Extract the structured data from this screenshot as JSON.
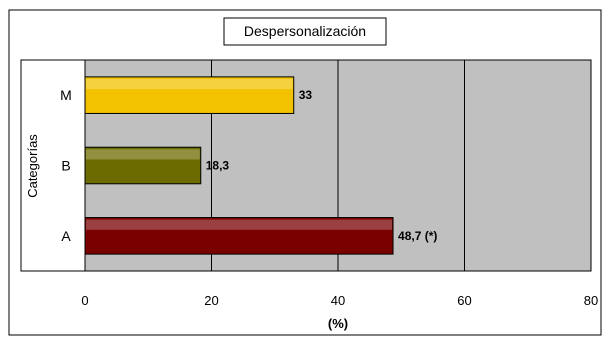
{
  "chart_data": {
    "type": "bar",
    "orientation": "horizontal",
    "title": "Despersonalización",
    "xlabel": "(%)",
    "ylabel": "Categorías",
    "categories": [
      "A",
      "B",
      "M"
    ],
    "values": [
      48.7,
      18.3,
      33
    ],
    "data_labels": [
      "48,7 (*)",
      "18,3",
      "33"
    ],
    "xlim": [
      0,
      80
    ],
    "xticks": [
      0,
      20,
      40,
      60,
      80
    ],
    "grid": true,
    "legend": "none",
    "colors": {
      "plot_background": "#c0c0c0",
      "A": "#7a0000",
      "B": "#6b6b00",
      "M": "#f2c200",
      "gridline": "#000000"
    }
  }
}
